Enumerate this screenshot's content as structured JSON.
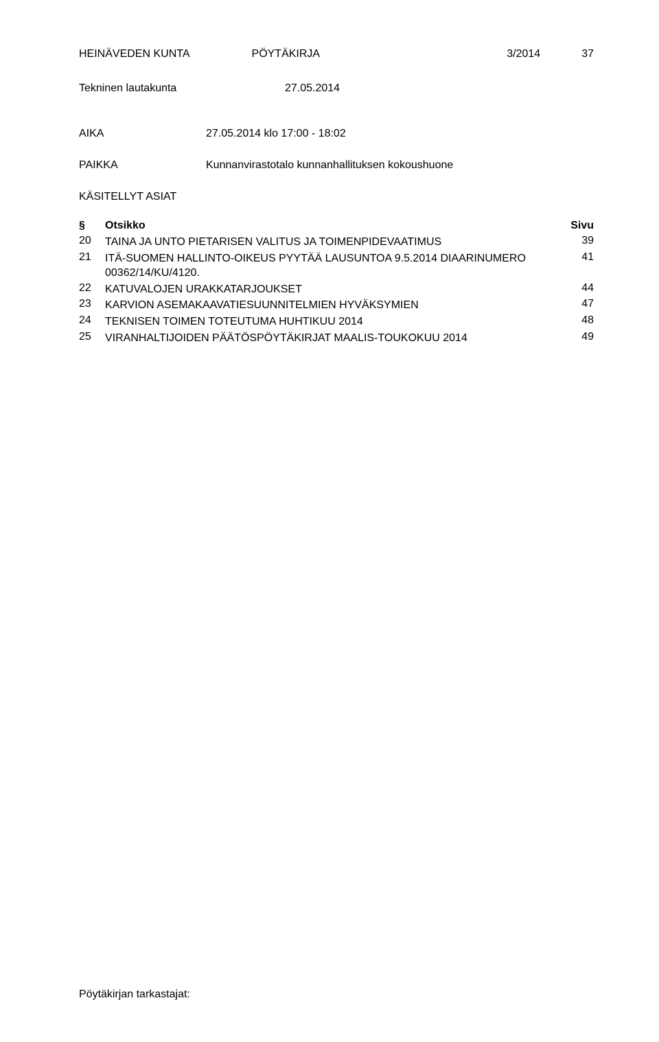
{
  "header": {
    "org": "HEINÄVEDEN KUNTA",
    "doc_type": "PÖYTÄKIRJA",
    "doc_number": "3/2014",
    "page_number": "37"
  },
  "subheader": {
    "committee": "Tekninen lautakunta",
    "date": "27.05.2014"
  },
  "meta": {
    "aika_label": "AIKA",
    "aika_value": "27.05.2014 klo 17:00 - 18:02",
    "paikka_label": "PAIKKA",
    "paikka_value": "Kunnanvirastotalo kunnanhallituksen kokoushuone"
  },
  "toc": {
    "section_title": "KÄSITELLYT ASIAT",
    "header": {
      "sym": "§",
      "title": "Otsikko",
      "page": "Sivu"
    },
    "items": [
      {
        "sym": "20",
        "title": "TAINA JA UNTO PIETARISEN VALITUS JA TOIMENPIDEVAATIMUS",
        "page": "39"
      },
      {
        "sym": "21",
        "title": "ITÄ-SUOMEN HALLINTO-OIKEUS PYYTÄÄ LAUSUNTOA 9.5.2014 DIAARINUMERO 00362/14/KU/4120.",
        "page": "41"
      },
      {
        "sym": "22",
        "title": "KATUVALOJEN URAKKATARJOUKSET",
        "page": "44"
      },
      {
        "sym": "23",
        "title": "KARVION ASEMAKAAVATIESUUNNITELMIEN HYVÄKSYMIEN",
        "page": "47"
      },
      {
        "sym": "24",
        "title": "TEKNISEN TOIMEN TOTEUTUMA HUHTIKUU 2014",
        "page": "48"
      },
      {
        "sym": "25",
        "title": "VIRANHALTIJOIDEN PÄÄTÖSPÖYTÄKIRJAT MAALIS-TOUKOKUU 2014",
        "page": "49"
      }
    ]
  },
  "footer": {
    "text": "Pöytäkirjan tarkastajat:"
  }
}
